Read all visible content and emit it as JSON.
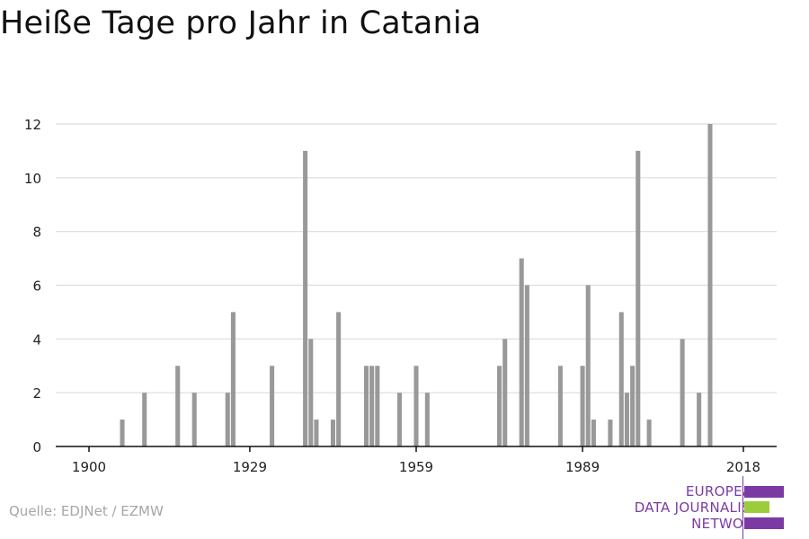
{
  "title": "Heiße Tage pro Jahr in Catania",
  "source": "Quelle: EDJNet / EZMW",
  "logo": {
    "lines": [
      "EUROPEAN",
      "DATA JOURNALISM",
      "NETWORK"
    ],
    "colors": {
      "purple": "#7b3aa3",
      "green": "#9ccc3c"
    }
  },
  "chart_data": {
    "type": "bar",
    "xlabel": "",
    "ylabel": "",
    "x_range": [
      1894,
      2024
    ],
    "ylim": [
      0,
      12
    ],
    "y_ticks": [
      0,
      2,
      4,
      6,
      8,
      10,
      12
    ],
    "x_ticks": [
      1900,
      1929,
      1959,
      1989,
      2018
    ],
    "grid": true,
    "bar_color": "#999999",
    "x": [
      1906,
      1910,
      1916,
      1919,
      1925,
      1926,
      1933,
      1939,
      1940,
      1941,
      1944,
      1945,
      1950,
      1951,
      1952,
      1956,
      1959,
      1961,
      1974,
      1975,
      1978,
      1979,
      1985,
      1989,
      1990,
      1991,
      1994,
      1996,
      1997,
      1998,
      1999,
      2001,
      2007,
      2010,
      2012
    ],
    "values": [
      1,
      2,
      3,
      2,
      2,
      5,
      3,
      11,
      4,
      1,
      1,
      5,
      3,
      3,
      3,
      2,
      3,
      2,
      3,
      4,
      7,
      6,
      3,
      3,
      6,
      1,
      1,
      5,
      2,
      3,
      11,
      1,
      4,
      2,
      12
    ]
  }
}
